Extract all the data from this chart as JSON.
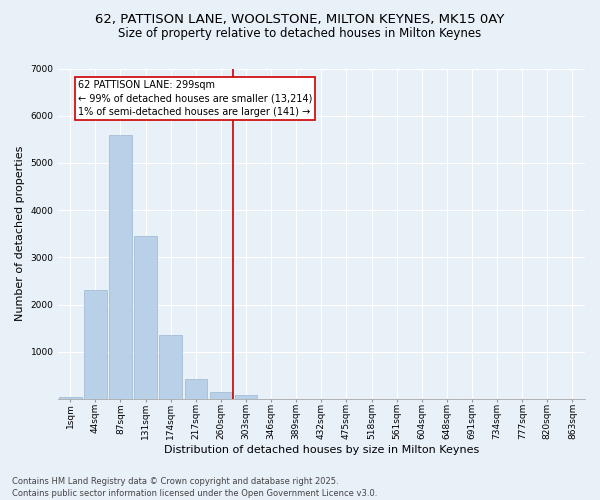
{
  "title_line1": "62, PATTISON LANE, WOOLSTONE, MILTON KEYNES, MK15 0AY",
  "title_line2": "Size of property relative to detached houses in Milton Keynes",
  "xlabel": "Distribution of detached houses by size in Milton Keynes",
  "ylabel": "Number of detached properties",
  "categories": [
    "1sqm",
    "44sqm",
    "87sqm",
    "131sqm",
    "174sqm",
    "217sqm",
    "260sqm",
    "303sqm",
    "346sqm",
    "389sqm",
    "432sqm",
    "475sqm",
    "518sqm",
    "561sqm",
    "604sqm",
    "648sqm",
    "691sqm",
    "734sqm",
    "777sqm",
    "820sqm",
    "863sqm"
  ],
  "values": [
    50,
    2300,
    5600,
    3450,
    1350,
    430,
    150,
    90,
    0,
    0,
    0,
    0,
    0,
    0,
    0,
    0,
    0,
    0,
    0,
    0,
    0
  ],
  "bar_color": "#b8d0e8",
  "bar_edge_color": "#9ab8d0",
  "vline_color": "#cc0000",
  "annotation_text": "62 PATTISON LANE: 299sqm\n← 99% of detached houses are smaller (13,214)\n1% of semi-detached houses are larger (141) →",
  "annotation_box_edge_color": "#cc0000",
  "ylim": [
    0,
    7000
  ],
  "yticks": [
    0,
    1000,
    2000,
    3000,
    4000,
    5000,
    6000,
    7000
  ],
  "background_color": "#e8f0f8",
  "plot_bg_color": "#e8f0f8",
  "grid_color": "#ffffff",
  "footer_line1": "Contains HM Land Registry data © Crown copyright and database right 2025.",
  "footer_line2": "Contains public sector information licensed under the Open Government Licence v3.0.",
  "title_fontsize": 9.5,
  "subtitle_fontsize": 8.5,
  "tick_fontsize": 6.5,
  "ylabel_fontsize": 8,
  "xlabel_fontsize": 8,
  "annotation_fontsize": 7,
  "footer_fontsize": 6
}
